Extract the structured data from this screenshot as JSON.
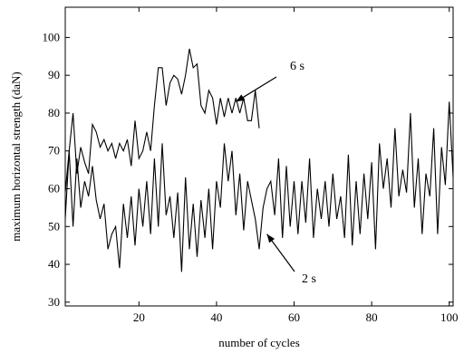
{
  "chart_data": {
    "type": "line",
    "title": "",
    "xlabel": "number of cycles",
    "ylabel": "maximum horizontal strength (daN)",
    "xlim": [
      1,
      101
    ],
    "ylim": [
      29,
      108
    ],
    "xticks": [
      20,
      40,
      60,
      80,
      100
    ],
    "yticks": [
      30,
      40,
      50,
      60,
      70,
      80,
      90,
      100
    ],
    "grid": false,
    "legend": "none",
    "line_color": "#000000",
    "series": [
      {
        "label": "6 s",
        "x": [
          1,
          2,
          3,
          4,
          5,
          6,
          7,
          8,
          9,
          10,
          11,
          12,
          13,
          14,
          15,
          16,
          17,
          18,
          19,
          20,
          21,
          22,
          23,
          24,
          25,
          26,
          27,
          28,
          29,
          30,
          31,
          32,
          33,
          34,
          35,
          36,
          37,
          38,
          39,
          40,
          41,
          42,
          43,
          44,
          45,
          46,
          47,
          48,
          49,
          50,
          51
        ],
        "y": [
          59,
          70,
          80,
          64,
          71,
          67,
          64,
          77,
          75,
          71,
          73,
          70,
          72,
          68,
          72,
          70,
          73,
          66,
          78,
          68,
          70,
          75,
          70,
          82,
          92,
          92,
          82,
          88,
          90,
          89,
          85,
          90,
          97,
          92,
          93,
          82,
          80,
          86,
          84,
          77,
          84,
          79,
          84,
          80,
          84,
          80,
          84,
          78,
          78,
          86,
          76
        ]
      },
      {
        "label": "2 s",
        "x": [
          1,
          2,
          3,
          4,
          5,
          6,
          7,
          8,
          9,
          10,
          11,
          12,
          13,
          14,
          15,
          16,
          17,
          18,
          19,
          20,
          21,
          22,
          23,
          24,
          25,
          26,
          27,
          28,
          29,
          30,
          31,
          32,
          33,
          34,
          35,
          36,
          37,
          38,
          39,
          40,
          41,
          42,
          43,
          44,
          45,
          46,
          47,
          48,
          49,
          50,
          51,
          52,
          53,
          54,
          55,
          56,
          57,
          58,
          59,
          60,
          61,
          62,
          63,
          64,
          65,
          66,
          67,
          68,
          69,
          70,
          71,
          72,
          73,
          74,
          75,
          76,
          77,
          78,
          79,
          80,
          81,
          82,
          83,
          84,
          85,
          86,
          87,
          88,
          89,
          90,
          91,
          92,
          93,
          94,
          95,
          96,
          97,
          98,
          99,
          100,
          101
        ],
        "y": [
          52,
          70,
          50,
          68,
          55,
          62,
          58,
          66,
          57,
          52,
          56,
          44,
          48,
          50,
          39,
          56,
          47,
          58,
          45,
          60,
          50,
          62,
          48,
          68,
          50,
          72,
          53,
          58,
          47,
          59,
          38,
          63,
          44,
          56,
          42,
          57,
          47,
          60,
          44,
          62,
          55,
          72,
          62,
          70,
          53,
          64,
          49,
          62,
          57,
          52,
          44,
          55,
          60,
          62,
          53,
          68,
          47,
          66,
          50,
          62,
          48,
          62,
          51,
          68,
          47,
          60,
          52,
          62,
          50,
          64,
          52,
          58,
          47,
          69,
          45,
          62,
          48,
          64,
          52,
          67,
          44,
          72,
          60,
          68,
          55,
          76,
          58,
          65,
          59,
          80,
          55,
          68,
          48,
          64,
          58,
          76,
          48,
          71,
          61,
          83,
          63
        ]
      }
    ],
    "annotations": [
      {
        "text": "6 s",
        "arrow_to": [
          45,
          83
        ]
      },
      {
        "text": "2 s",
        "arrow_to": [
          53,
          48
        ]
      }
    ]
  }
}
